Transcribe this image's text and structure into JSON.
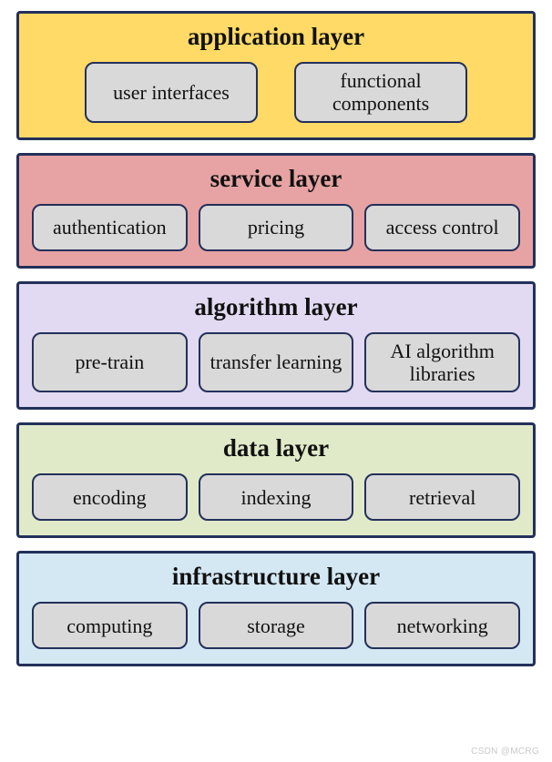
{
  "diagram": {
    "type": "infographic",
    "border_color": "#23305a",
    "box_bg": "#d9d9d9",
    "box_border": "#23305a",
    "title_fontsize": 27,
    "box_fontsize": 22,
    "layers": [
      {
        "title": "application layer",
        "bg": "#ffda66",
        "boxes": [
          "user interfaces",
          "functional components"
        ]
      },
      {
        "title": "service layer",
        "bg": "#e7a3a3",
        "boxes": [
          "authentication",
          "pricing",
          "access control"
        ]
      },
      {
        "title": "algorithm layer",
        "bg": "#e2d9f2",
        "boxes": [
          "pre-train",
          "transfer learning",
          "AI algorithm libraries"
        ]
      },
      {
        "title": "data layer",
        "bg": "#e1eac8",
        "boxes": [
          "encoding",
          "indexing",
          "retrieval"
        ]
      },
      {
        "title": "infrastructure layer",
        "bg": "#d4e8f4",
        "boxes": [
          "computing",
          "storage",
          "networking"
        ]
      }
    ]
  },
  "watermark": "CSDN @MCRG"
}
